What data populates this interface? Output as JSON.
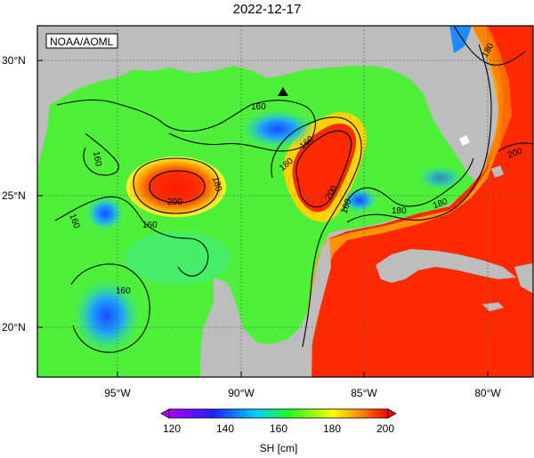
{
  "title": "2022-12-17",
  "credit": "NOAA/AOML",
  "lat_labels": [
    "30°N",
    "25°N",
    "20°N"
  ],
  "lon_labels": [
    "95°W",
    "90°W",
    "85°W",
    "80°W"
  ],
  "contour_labels": [
    "160",
    "160",
    "160",
    "160",
    "160",
    "160",
    "160",
    "180",
    "180",
    "180",
    "180",
    "180",
    "200",
    "200",
    "200"
  ],
  "colorbar": {
    "ticks": [
      "120",
      "140",
      "160",
      "180",
      "200"
    ],
    "label": "SH [cm]",
    "colors": [
      "#ff00ff",
      "#0000ff",
      "#00c8ff",
      "#00ff00",
      "#ffff00",
      "#ff8000",
      "#ff0000"
    ]
  },
  "colors": {
    "land": "#bdbdbd",
    "gulf_green": "#4ef03a",
    "warm_red": "#ff2a00"
  }
}
